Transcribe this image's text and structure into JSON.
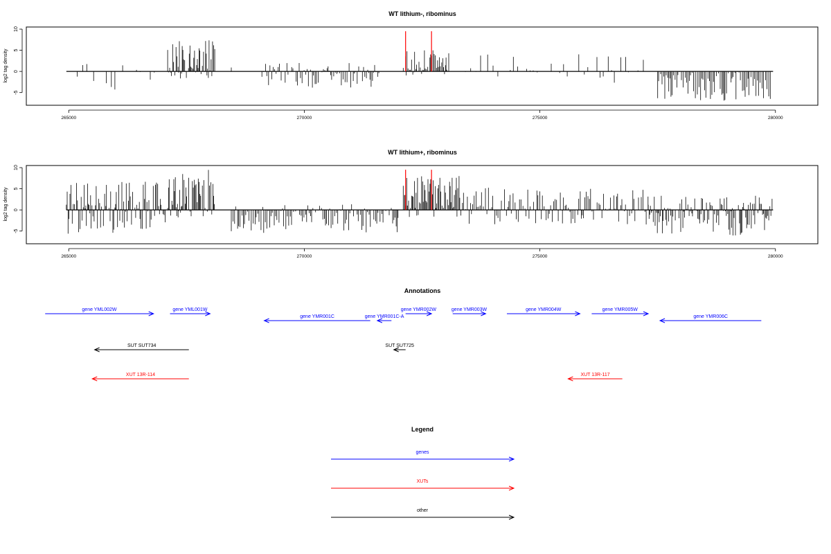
{
  "chart_data": [
    {
      "type": "bar",
      "title": "WT lithium-, ribominus",
      "xlabel": "",
      "ylabel": "log2 tag density",
      "xlim": [
        264100,
        280900
      ],
      "ylim": [
        -8,
        10.5
      ],
      "xticks": [
        265000,
        270000,
        275000,
        280000
      ],
      "yticks": [
        -5,
        0,
        5,
        10
      ],
      "grid": false,
      "segments": [
        {
          "from": 265000,
          "to": 266900,
          "min": -5,
          "max": 3.5,
          "density": "sparse",
          "seed": 11
        },
        {
          "from": 267100,
          "to": 268100,
          "min": -2,
          "max": 7.5,
          "density": "dense",
          "seed": 12
        },
        {
          "from": 268450,
          "to": 268550,
          "min": 0,
          "max": 2,
          "density": "sparse",
          "seed": 13
        },
        {
          "from": 269100,
          "to": 271600,
          "min": -4,
          "max": 2,
          "density": "medium",
          "seed": 14
        },
        {
          "from": 272100,
          "to": 273100,
          "min": -1,
          "max": 5,
          "density": "dense",
          "seed": 15
        },
        {
          "from": 273300,
          "to": 277200,
          "min": -3.5,
          "max": 4.5,
          "density": "sparse",
          "seed": 16
        },
        {
          "from": 277500,
          "to": 279900,
          "min": -7,
          "max": 0,
          "density": "medium",
          "seed": 17
        }
      ],
      "highlights": [
        {
          "x": 272150,
          "y": 9.5,
          "color": "#ff0000"
        },
        {
          "x": 272700,
          "y": 9.5,
          "color": "#ff0000"
        }
      ]
    },
    {
      "type": "bar",
      "title": "WT lithium+, ribominus",
      "xlabel": "",
      "ylabel": "log2 tag density",
      "xlim": [
        264100,
        280900
      ],
      "ylim": [
        -8,
        10.5
      ],
      "xticks": [
        265000,
        270000,
        275000,
        280000
      ],
      "yticks": [
        -5,
        0,
        5,
        10
      ],
      "grid": false,
      "segments": [
        {
          "from": 264950,
          "to": 267050,
          "min": -6,
          "max": 7,
          "density": "dense",
          "seed": 21
        },
        {
          "from": 267100,
          "to": 268100,
          "min": -2,
          "max": 9.5,
          "density": "dense",
          "seed": 22
        },
        {
          "from": 268450,
          "to": 272000,
          "min": -5.5,
          "max": 1.5,
          "density": "medium",
          "seed": 23
        },
        {
          "from": 272100,
          "to": 273300,
          "min": -2,
          "max": 8,
          "density": "dense",
          "seed": 24
        },
        {
          "from": 273300,
          "to": 277300,
          "min": -3.5,
          "max": 5.5,
          "density": "medium",
          "seed": 25
        },
        {
          "from": 277300,
          "to": 279950,
          "min": -6.5,
          "max": 3.5,
          "density": "dense",
          "seed": 26
        }
      ],
      "highlights": [
        {
          "x": 272150,
          "y": 9.5,
          "color": "#ff0000"
        },
        {
          "x": 272700,
          "y": 9.5,
          "color": "#ff0000"
        }
      ]
    }
  ],
  "annotations": {
    "title": "Annotations",
    "items": [
      {
        "label": "gene YML002W",
        "start": 264500,
        "end": 266800,
        "strand": "+",
        "row": 0,
        "kind": "gene"
      },
      {
        "label": "gene YML001W",
        "start": 267150,
        "end": 268000,
        "strand": "+",
        "row": 0,
        "kind": "gene"
      },
      {
        "label": "gene YMR001C",
        "start": 269150,
        "end": 271400,
        "strand": "-",
        "row": 1,
        "kind": "gene"
      },
      {
        "label": "gene YMR001C-A",
        "start": 271550,
        "end": 271850,
        "strand": "-",
        "row": 1,
        "kind": "gene"
      },
      {
        "label": "gene YMR002W",
        "start": 272150,
        "end": 272700,
        "strand": "+",
        "row": 0,
        "kind": "gene"
      },
      {
        "label": "gene YMR003W",
        "start": 273150,
        "end": 273850,
        "strand": "+",
        "row": 0,
        "kind": "gene"
      },
      {
        "label": "gene YMR004W",
        "start": 274300,
        "end": 275850,
        "strand": "+",
        "row": 0,
        "kind": "gene"
      },
      {
        "label": "gene YMR005W",
        "start": 276100,
        "end": 277300,
        "strand": "+",
        "row": 0,
        "kind": "gene"
      },
      {
        "label": "gene YMR006C",
        "start": 277550,
        "end": 279700,
        "strand": "-",
        "row": 1,
        "kind": "gene"
      },
      {
        "label": "SUT SUT734",
        "start": 265550,
        "end": 267550,
        "strand": "-",
        "row": 2,
        "kind": "other"
      },
      {
        "label": "SUT SUT725",
        "start": 271900,
        "end": 272150,
        "strand": "-",
        "row": 2,
        "kind": "other"
      },
      {
        "label": "XUT 13R-114",
        "start": 265500,
        "end": 267550,
        "strand": "-",
        "row": 3,
        "kind": "xut"
      },
      {
        "label": "XUT 13R-117",
        "start": 275600,
        "end": 276750,
        "strand": "-",
        "row": 3,
        "kind": "xut"
      }
    ]
  },
  "legend": {
    "title": "Legend",
    "items": [
      {
        "label": "genes",
        "kind": "gene"
      },
      {
        "label": "XUTs",
        "kind": "xut"
      },
      {
        "label": "other",
        "kind": "other"
      }
    ]
  },
  "colors": {
    "gene": "#0000ff",
    "xut": "#ff0000",
    "other": "#000000",
    "bars": "#000000",
    "highlight": "#ff0000"
  }
}
